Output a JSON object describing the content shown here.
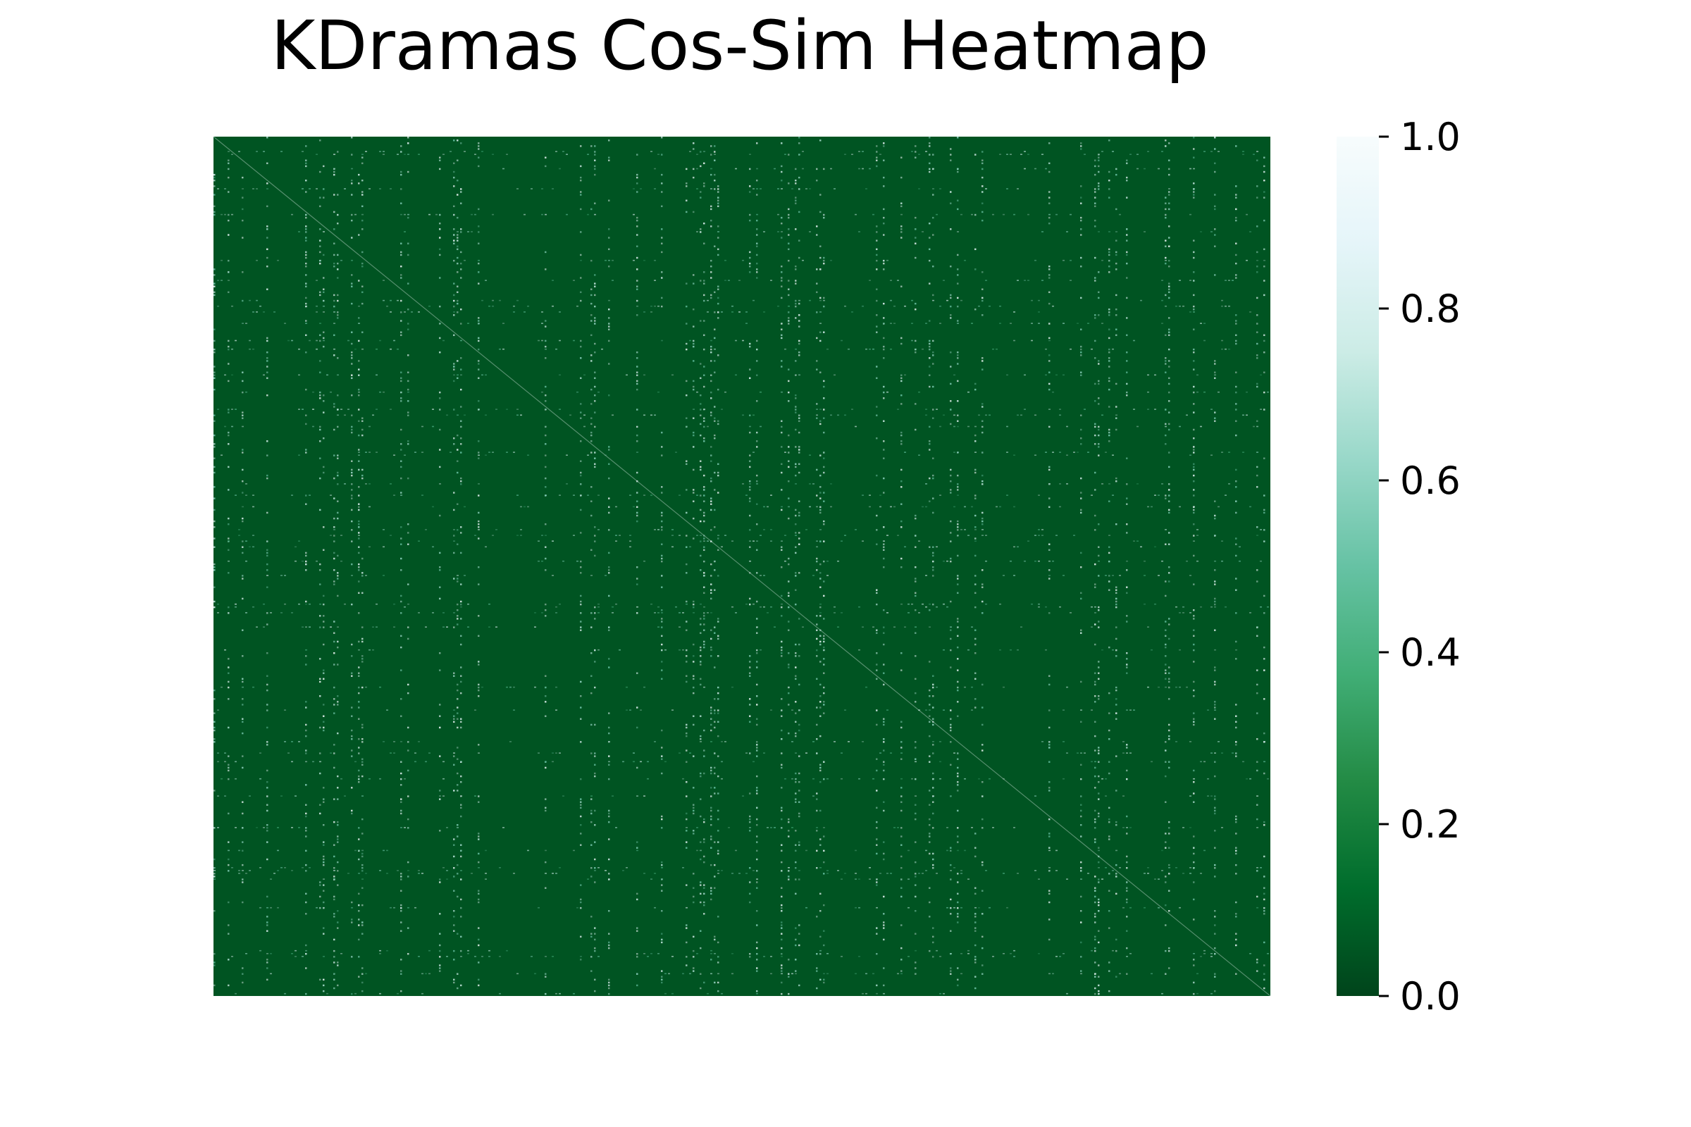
{
  "chart_data": {
    "type": "heatmap",
    "title": "KDramas Cos-Sim Heatmap",
    "xlabel": "",
    "ylabel": "",
    "colormap": "BuGn_r",
    "colorbar": {
      "range": [
        0.0,
        1.0
      ],
      "ticks": [
        0.0,
        0.2,
        0.4,
        0.6,
        0.8,
        1.0
      ],
      "tick_labels": [
        "0.0",
        "0.2",
        "0.4",
        "0.6",
        "0.8",
        "1.0"
      ]
    },
    "value_range": [
      0.0,
      1.0
    ],
    "typical_value": 0.05,
    "grid": false,
    "x_tick_labels": [],
    "y_tick_labels": []
  },
  "colors": {
    "background": "#ffffff",
    "cmap_stops": [
      "#00441b",
      "#006d2c",
      "#238b45",
      "#41ae76",
      "#66c2a4",
      "#99d8c9",
      "#ccece6",
      "#e5f5f9",
      "#f7fcfd"
    ]
  }
}
